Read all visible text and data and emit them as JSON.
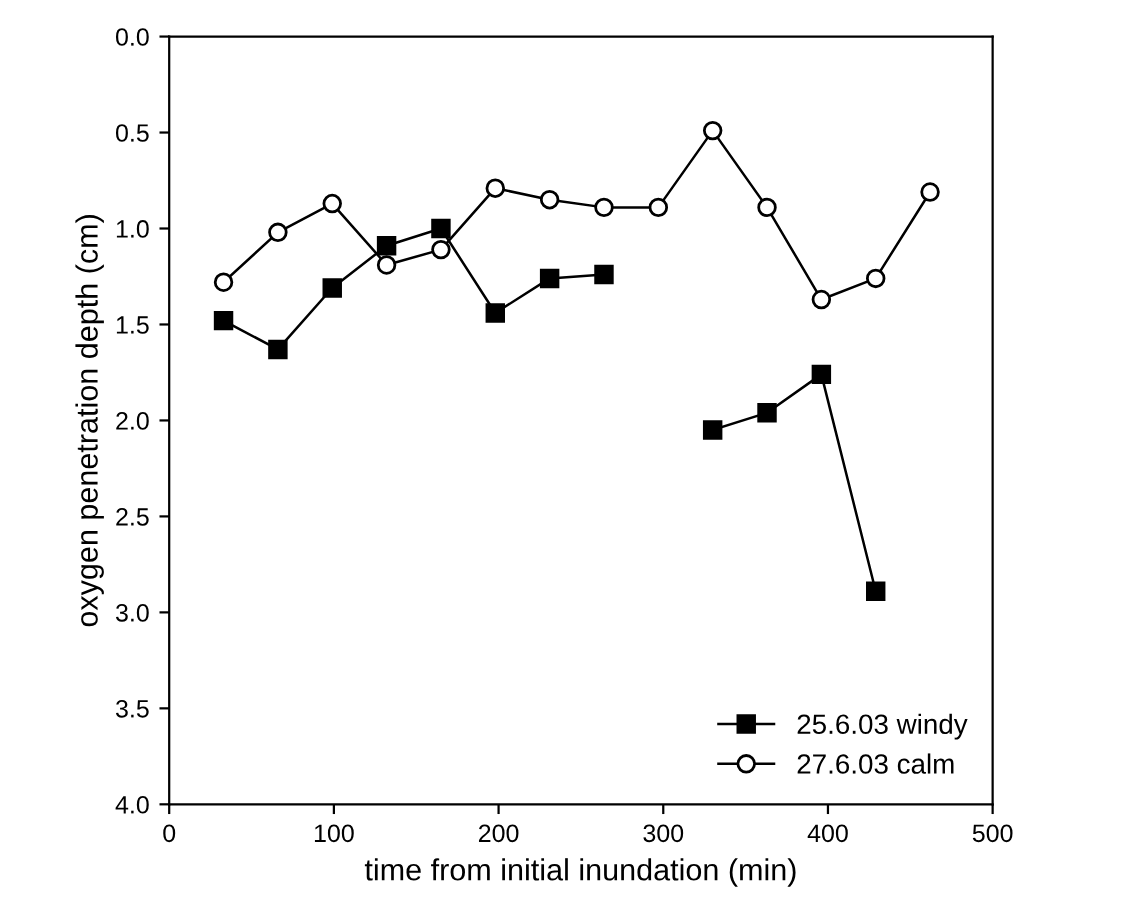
{
  "chart_data": {
    "type": "line",
    "xlabel": "time from initial inundation (min)",
    "ylabel": "oxygen penetration depth (cm)",
    "x": [
      33,
      66,
      99,
      132,
      165,
      198,
      231,
      264,
      297,
      330,
      363,
      396,
      429,
      462
    ],
    "series": [
      {
        "name": "25.6.03 windy",
        "color": "#000000",
        "marker": "square",
        "values": [
          1.48,
          1.63,
          1.31,
          1.09,
          1.0,
          1.44,
          1.26,
          1.24,
          null,
          2.05,
          1.96,
          1.76,
          2.89,
          null
        ]
      },
      {
        "name": "27.6.03 calm",
        "color": "#000000",
        "marker": "circle",
        "values": [
          1.28,
          1.02,
          0.87,
          1.19,
          1.11,
          0.79,
          0.85,
          0.89,
          0.89,
          0.49,
          0.89,
          1.37,
          1.26,
          0.81
        ]
      }
    ],
    "xlim": [
      0,
      500
    ],
    "xticks": [
      0,
      100,
      200,
      300,
      400,
      500
    ],
    "ylim": [
      4.0,
      0.0
    ],
    "yticks": [
      {
        "value": 0,
        "label": "0.0"
      },
      0.5,
      {
        "value": 1,
        "label": "1.0"
      },
      1.5,
      {
        "value": 2,
        "label": "2.0"
      },
      2.5,
      {
        "value": 3,
        "label": "3.0"
      },
      3.5,
      {
        "value": 4,
        "label": "4.0"
      }
    ],
    "legend": "bottom right",
    "grid": false,
    "line_style": "solid"
  }
}
